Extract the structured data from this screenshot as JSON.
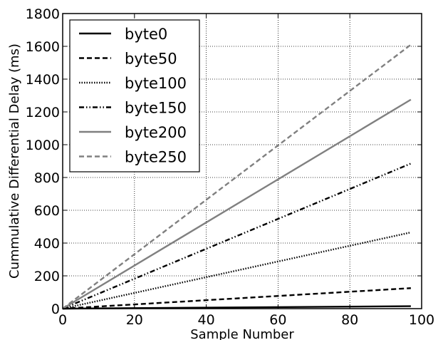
{
  "chart_data": {
    "type": "line",
    "title": "",
    "xlabel": "Sample Number",
    "ylabel": "Cummulative Differential Delay (ms)",
    "xlim": [
      0,
      100
    ],
    "ylim": [
      0,
      1800
    ],
    "x_ticks": [
      0,
      20,
      40,
      60,
      80,
      100
    ],
    "y_ticks": [
      0,
      200,
      400,
      600,
      800,
      1000,
      1200,
      1400,
      1600,
      1800
    ],
    "grid": true,
    "legend_position": "top-left",
    "series": [
      {
        "name": "byte0",
        "x": [
          0,
          97
        ],
        "y": [
          0,
          15
        ],
        "color": "#000000",
        "dash": "solid"
      },
      {
        "name": "byte50",
        "x": [
          0,
          97
        ],
        "y": [
          0,
          125
        ],
        "color": "#000000",
        "dash": "dashed"
      },
      {
        "name": "byte100",
        "x": [
          0,
          97
        ],
        "y": [
          0,
          465
        ],
        "color": "#000000",
        "dash": "dotted"
      },
      {
        "name": "byte150",
        "x": [
          0,
          97
        ],
        "y": [
          0,
          885
        ],
        "color": "#000000",
        "dash": "dashdotdot"
      },
      {
        "name": "byte200",
        "x": [
          0,
          97
        ],
        "y": [
          0,
          1275
        ],
        "color": "#808080",
        "dash": "solid"
      },
      {
        "name": "byte250",
        "x": [
          0,
          97
        ],
        "y": [
          0,
          1610
        ],
        "color": "#808080",
        "dash": "dashed"
      }
    ]
  }
}
